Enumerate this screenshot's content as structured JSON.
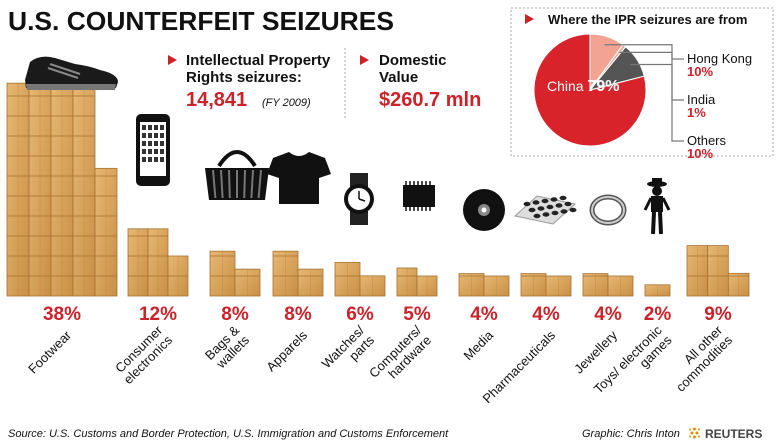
{
  "title": "U.S. COUNTERFEIT SEIZURES",
  "ipr_block": {
    "label_line1": "Intellectual Property",
    "label_line2": "Rights seizures:",
    "value": "14,841",
    "note": "(FY 2009)"
  },
  "domestic_block": {
    "label_line1": "Domestic",
    "label_line2": "Value",
    "value": "$260.7 mln"
  },
  "pie": {
    "title": "Where the IPR seizures are from",
    "slices": [
      {
        "label": "China",
        "value": 79,
        "value_text": "79%",
        "color": "#d9232a"
      },
      {
        "label": "Hong Kong",
        "value": 10,
        "value_text": "10%",
        "color": "#f2a392"
      },
      {
        "label": "India",
        "value": 1,
        "value_text": "1%",
        "color": "#e7b0a4"
      },
      {
        "label": "Others",
        "value": 10,
        "value_text": "10%",
        "color": "#555555"
      }
    ]
  },
  "chart_data": {
    "type": "bar",
    "title": "U.S. COUNTERFEIT SEIZURES",
    "categories": [
      "Footwear",
      "Consumer electronics",
      "Bags & wallets",
      "Apparels",
      "Watches/ parts",
      "Computers/ hardware",
      "Media",
      "Pharmaceuticals",
      "Jewellery",
      "Toys/ electronic games",
      "All other commodities"
    ],
    "category_lines": [
      [
        "Footwear"
      ],
      [
        "Consumer",
        "electronics"
      ],
      [
        "Bags &",
        "wallets"
      ],
      [
        "Apparels"
      ],
      [
        "Watches/",
        "parts"
      ],
      [
        "Computers/",
        "hardware"
      ],
      [
        "Media"
      ],
      [
        "Pharmaceuticals"
      ],
      [
        "Jewellery"
      ],
      [
        "Toys/ electronic",
        "games"
      ],
      [
        "All other",
        "commodities"
      ]
    ],
    "values": [
      38,
      12,
      8,
      8,
      6,
      5,
      4,
      4,
      4,
      2,
      9
    ],
    "value_labels": [
      "38%",
      "12%",
      "8%",
      "8%",
      "6%",
      "5%",
      "4%",
      "4%",
      "4%",
      "2%",
      "9%"
    ],
    "icons": [
      "sneaker-icon",
      "smartphone-icon",
      "handbag-icon",
      "tshirt-icon",
      "watch-icon",
      "microchip-icon",
      "disc-icon",
      "pills-icon",
      "ring-icon",
      "toy-figure-icon",
      "none"
    ],
    "box_color": "#d9a45a",
    "label_color": "#cc2229"
  },
  "footer": {
    "source": "Source: U.S. Customs and Border Protection, U.S. Immigration and Customs Enforcement",
    "credit": "Graphic: Chris Inton",
    "brand": "REUTERS"
  }
}
